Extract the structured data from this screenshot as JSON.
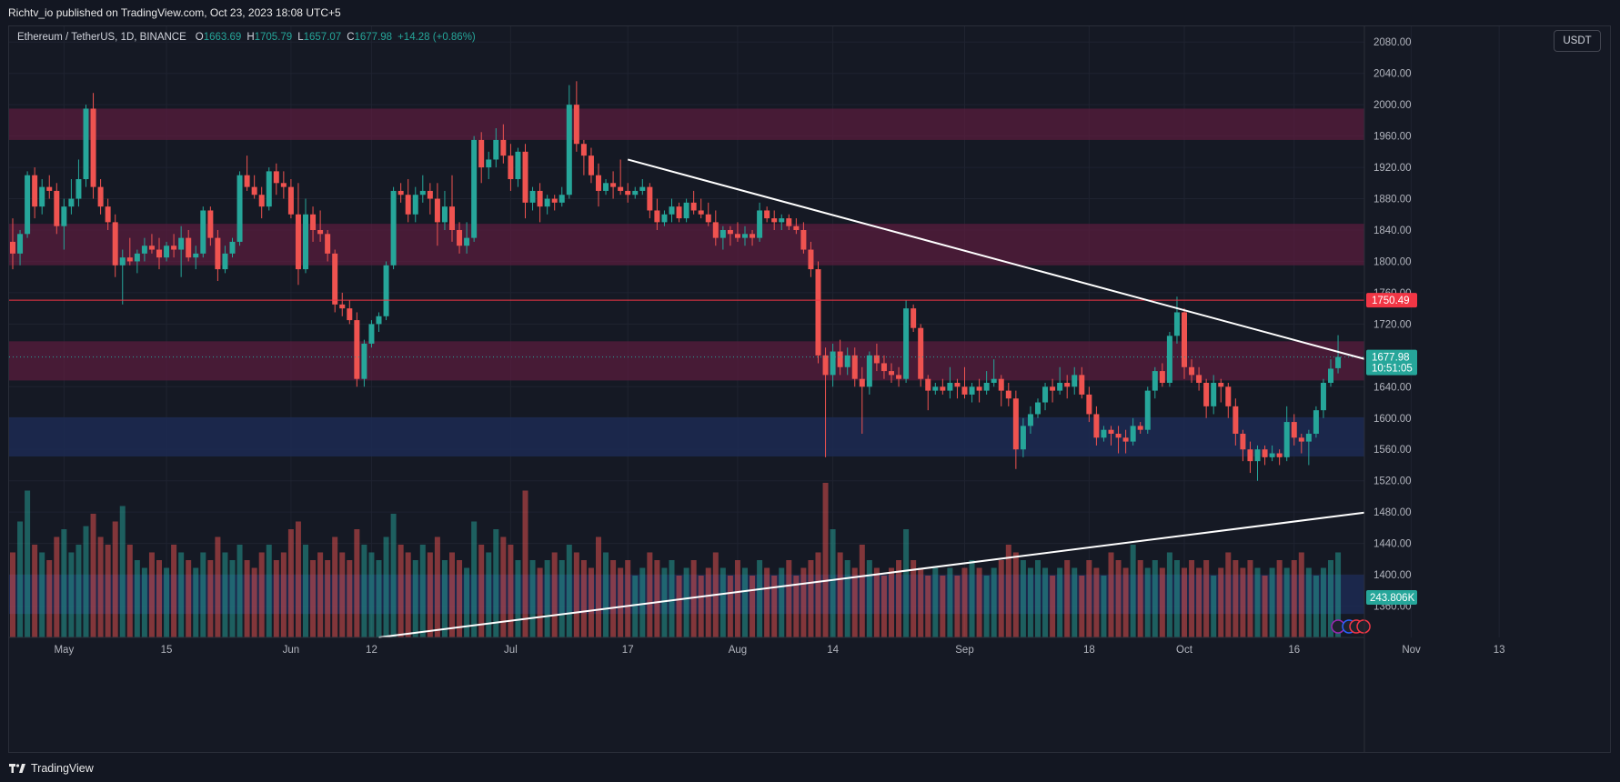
{
  "publisher_line": "Richtv_io published on TradingView.com, Oct 23, 2023 18:08 UTC+5",
  "brand": {
    "name": "TradingView",
    "icon": "tradingview-logo-icon"
  },
  "currency": "USDT",
  "legend": {
    "symbol": "Ethereum / TetherUS, 1D, BINANCE",
    "open_label": "O",
    "open": "1663.69",
    "high_label": "H",
    "high": "1705.79",
    "low_label": "L",
    "low": "1657.07",
    "close_label": "C",
    "close": "1677.98",
    "change": "+14.28 (+0.86%)"
  },
  "colors": {
    "up": "#26a69a",
    "down": "#ef5350",
    "supply_zone": "#5c1d3e",
    "demand_zone": "#1c2a52",
    "level_line": "#f23645",
    "trendline": "#ffffff"
  },
  "chart_data": {
    "type": "candlestick",
    "symbol": "ETHUSDT",
    "interval": "1D",
    "ylim": [
      1320,
      2100
    ],
    "y_ticks": [
      "2080.00",
      "2040.00",
      "2000.00",
      "1960.00",
      "1920.00",
      "1880.00",
      "1840.00",
      "1800.00",
      "1760.00",
      "1720.00",
      "1680.00",
      "1640.00",
      "1600.00",
      "1560.00",
      "1520.00",
      "1480.00",
      "1440.00",
      "1400.00",
      "1360.00"
    ],
    "x_ticks": [
      "May",
      "15",
      "Jun",
      "12",
      "Jul",
      "17",
      "Aug",
      "14",
      "Sep",
      "18",
      "Oct",
      "16",
      "Nov",
      "13"
    ],
    "price_labels": [
      {
        "value": 1750.49,
        "text": "1750.49",
        "color": "#f23645"
      },
      {
        "value": 1677.98,
        "text": "1677.98",
        "sub": "10:51:05",
        "color": "#26a69a"
      }
    ],
    "volume_label": {
      "text": "243.806K",
      "color": "#26a69a"
    },
    "zones": [
      {
        "kind": "supply",
        "from": 1955,
        "to": 1995
      },
      {
        "kind": "supply",
        "from": 1795,
        "to": 1848
      },
      {
        "kind": "supply",
        "from": 1648,
        "to": 1698
      },
      {
        "kind": "demand",
        "from": 1551,
        "to": 1601
      },
      {
        "kind": "demand",
        "from": 1350,
        "to": 1400
      }
    ],
    "horizontal_level": 1750.49,
    "last_price": 1677.98,
    "trendlines": [
      {
        "from": {
          "date": "2023-07-17",
          "price": 1930
        },
        "to": {
          "date": "2023-11-09",
          "price": 1639
        }
      },
      {
        "from": {
          "date": "2023-06-13",
          "price": 1320
        },
        "to": {
          "date": "2023-11-29",
          "price": 1520
        }
      }
    ],
    "start_date": "2023-04-24",
    "candles": [
      [
        1825,
        1855,
        1790,
        1810
      ],
      [
        1810,
        1840,
        1795,
        1835
      ],
      [
        1835,
        1915,
        1830,
        1910
      ],
      [
        1910,
        1920,
        1855,
        1870
      ],
      [
        1870,
        1905,
        1860,
        1895
      ],
      [
        1895,
        1910,
        1880,
        1890
      ],
      [
        1890,
        1900,
        1835,
        1845
      ],
      [
        1845,
        1880,
        1815,
        1870
      ],
      [
        1870,
        1905,
        1860,
        1880
      ],
      [
        1880,
        1930,
        1870,
        1905
      ],
      [
        1905,
        2000,
        1895,
        1995
      ],
      [
        1995,
        2015,
        1880,
        1895
      ],
      [
        1895,
        1905,
        1860,
        1870
      ],
      [
        1870,
        1880,
        1840,
        1850
      ],
      [
        1850,
        1860,
        1780,
        1795
      ],
      [
        1795,
        1815,
        1745,
        1805
      ],
      [
        1805,
        1830,
        1795,
        1800
      ],
      [
        1800,
        1815,
        1785,
        1810
      ],
      [
        1810,
        1830,
        1800,
        1820
      ],
      [
        1820,
        1835,
        1810,
        1815
      ],
      [
        1815,
        1830,
        1790,
        1805
      ],
      [
        1805,
        1825,
        1800,
        1820
      ],
      [
        1820,
        1835,
        1805,
        1815
      ],
      [
        1815,
        1845,
        1780,
        1830
      ],
      [
        1830,
        1840,
        1800,
        1805
      ],
      [
        1805,
        1820,
        1790,
        1810
      ],
      [
        1810,
        1870,
        1805,
        1865
      ],
      [
        1865,
        1870,
        1820,
        1830
      ],
      [
        1830,
        1840,
        1775,
        1790
      ],
      [
        1790,
        1820,
        1785,
        1810
      ],
      [
        1810,
        1830,
        1805,
        1825
      ],
      [
        1825,
        1915,
        1820,
        1910
      ],
      [
        1910,
        1935,
        1890,
        1895
      ],
      [
        1895,
        1910,
        1880,
        1885
      ],
      [
        1885,
        1895,
        1855,
        1870
      ],
      [
        1870,
        1920,
        1865,
        1915
      ],
      [
        1915,
        1925,
        1885,
        1900
      ],
      [
        1900,
        1915,
        1880,
        1895
      ],
      [
        1895,
        1905,
        1855,
        1860
      ],
      [
        1860,
        1900,
        1770,
        1790
      ],
      [
        1790,
        1880,
        1785,
        1860
      ],
      [
        1860,
        1870,
        1825,
        1840
      ],
      [
        1840,
        1865,
        1825,
        1835
      ],
      [
        1835,
        1840,
        1800,
        1810
      ],
      [
        1810,
        1815,
        1735,
        1745
      ],
      [
        1745,
        1760,
        1730,
        1740
      ],
      [
        1740,
        1750,
        1720,
        1725
      ],
      [
        1725,
        1735,
        1640,
        1650
      ],
      [
        1650,
        1700,
        1640,
        1695
      ],
      [
        1695,
        1725,
        1690,
        1720
      ],
      [
        1720,
        1735,
        1710,
        1730
      ],
      [
        1730,
        1800,
        1725,
        1795
      ],
      [
        1795,
        1895,
        1790,
        1890
      ],
      [
        1890,
        1900,
        1875,
        1885
      ],
      [
        1885,
        1905,
        1850,
        1860
      ],
      [
        1860,
        1895,
        1850,
        1885
      ],
      [
        1885,
        1910,
        1875,
        1890
      ],
      [
        1890,
        1900,
        1860,
        1880
      ],
      [
        1880,
        1900,
        1820,
        1850
      ],
      [
        1850,
        1890,
        1840,
        1870
      ],
      [
        1870,
        1910,
        1825,
        1840
      ],
      [
        1840,
        1850,
        1810,
        1820
      ],
      [
        1820,
        1850,
        1810,
        1830
      ],
      [
        1830,
        1960,
        1825,
        1955
      ],
      [
        1955,
        1965,
        1900,
        1920
      ],
      [
        1920,
        1940,
        1905,
        1930
      ],
      [
        1930,
        1970,
        1920,
        1955
      ],
      [
        1955,
        1975,
        1925,
        1935
      ],
      [
        1935,
        1950,
        1890,
        1905
      ],
      [
        1905,
        1945,
        1895,
        1940
      ],
      [
        1940,
        1950,
        1855,
        1875
      ],
      [
        1875,
        1895,
        1865,
        1890
      ],
      [
        1890,
        1900,
        1850,
        1870
      ],
      [
        1870,
        1885,
        1860,
        1880
      ],
      [
        1880,
        1885,
        1865,
        1875
      ],
      [
        1875,
        1895,
        1870,
        1885
      ],
      [
        1885,
        2025,
        1880,
        2000
      ],
      [
        2000,
        2030,
        1940,
        1950
      ],
      [
        1950,
        1955,
        1910,
        1935
      ],
      [
        1935,
        1945,
        1900,
        1910
      ],
      [
        1910,
        1925,
        1870,
        1890
      ],
      [
        1890,
        1905,
        1885,
        1900
      ],
      [
        1900,
        1915,
        1880,
        1895
      ],
      [
        1895,
        1930,
        1885,
        1890
      ],
      [
        1890,
        1900,
        1875,
        1885
      ],
      [
        1885,
        1895,
        1880,
        1890
      ],
      [
        1890,
        1905,
        1885,
        1895
      ],
      [
        1895,
        1900,
        1855,
        1865
      ],
      [
        1865,
        1880,
        1840,
        1850
      ],
      [
        1850,
        1865,
        1845,
        1860
      ],
      [
        1860,
        1880,
        1850,
        1870
      ],
      [
        1870,
        1875,
        1850,
        1855
      ],
      [
        1855,
        1880,
        1850,
        1875
      ],
      [
        1875,
        1890,
        1860,
        1865
      ],
      [
        1865,
        1880,
        1855,
        1860
      ],
      [
        1860,
        1875,
        1845,
        1850
      ],
      [
        1850,
        1865,
        1820,
        1830
      ],
      [
        1830,
        1845,
        1815,
        1840
      ],
      [
        1840,
        1845,
        1820,
        1835
      ],
      [
        1835,
        1850,
        1825,
        1830
      ],
      [
        1830,
        1845,
        1820,
        1835
      ],
      [
        1835,
        1840,
        1820,
        1830
      ],
      [
        1830,
        1875,
        1825,
        1865
      ],
      [
        1865,
        1870,
        1850,
        1855
      ],
      [
        1855,
        1865,
        1840,
        1850
      ],
      [
        1850,
        1860,
        1840,
        1855
      ],
      [
        1855,
        1860,
        1840,
        1845
      ],
      [
        1845,
        1855,
        1835,
        1840
      ],
      [
        1840,
        1850,
        1810,
        1815
      ],
      [
        1815,
        1825,
        1780,
        1790
      ],
      [
        1790,
        1800,
        1670,
        1680
      ],
      [
        1680,
        1690,
        1550,
        1655
      ],
      [
        1655,
        1695,
        1640,
        1685
      ],
      [
        1685,
        1700,
        1655,
        1665
      ],
      [
        1665,
        1690,
        1655,
        1680
      ],
      [
        1680,
        1690,
        1640,
        1650
      ],
      [
        1650,
        1665,
        1580,
        1640
      ],
      [
        1640,
        1685,
        1630,
        1680
      ],
      [
        1680,
        1695,
        1660,
        1670
      ],
      [
        1670,
        1680,
        1650,
        1660
      ],
      [
        1660,
        1670,
        1645,
        1655
      ],
      [
        1655,
        1665,
        1640,
        1650
      ],
      [
        1650,
        1750,
        1645,
        1740
      ],
      [
        1740,
        1745,
        1710,
        1715
      ],
      [
        1715,
        1720,
        1640,
        1650
      ],
      [
        1650,
        1655,
        1610,
        1635
      ],
      [
        1635,
        1645,
        1630,
        1640
      ],
      [
        1640,
        1650,
        1630,
        1635
      ],
      [
        1635,
        1665,
        1625,
        1645
      ],
      [
        1645,
        1650,
        1625,
        1640
      ],
      [
        1640,
        1665,
        1625,
        1630
      ],
      [
        1630,
        1645,
        1620,
        1640
      ],
      [
        1640,
        1650,
        1620,
        1635
      ],
      [
        1635,
        1660,
        1630,
        1645
      ],
      [
        1645,
        1675,
        1640,
        1650
      ],
      [
        1650,
        1655,
        1615,
        1635
      ],
      [
        1635,
        1645,
        1615,
        1625
      ],
      [
        1625,
        1635,
        1535,
        1560
      ],
      [
        1560,
        1600,
        1550,
        1590
      ],
      [
        1590,
        1615,
        1580,
        1605
      ],
      [
        1605,
        1625,
        1600,
        1620
      ],
      [
        1620,
        1645,
        1610,
        1640
      ],
      [
        1640,
        1650,
        1620,
        1635
      ],
      [
        1635,
        1665,
        1630,
        1645
      ],
      [
        1645,
        1655,
        1625,
        1640
      ],
      [
        1640,
        1665,
        1630,
        1655
      ],
      [
        1655,
        1665,
        1625,
        1630
      ],
      [
        1630,
        1640,
        1595,
        1605
      ],
      [
        1605,
        1615,
        1565,
        1575
      ],
      [
        1575,
        1590,
        1570,
        1585
      ],
      [
        1585,
        1590,
        1565,
        1580
      ],
      [
        1580,
        1590,
        1555,
        1575
      ],
      [
        1575,
        1585,
        1555,
        1570
      ],
      [
        1570,
        1600,
        1565,
        1590
      ],
      [
        1590,
        1595,
        1580,
        1585
      ],
      [
        1585,
        1640,
        1580,
        1635
      ],
      [
        1635,
        1665,
        1625,
        1660
      ],
      [
        1660,
        1670,
        1640,
        1645
      ],
      [
        1645,
        1710,
        1640,
        1705
      ],
      [
        1705,
        1755,
        1695,
        1735
      ],
      [
        1735,
        1740,
        1650,
        1665
      ],
      [
        1665,
        1675,
        1645,
        1655
      ],
      [
        1655,
        1665,
        1635,
        1645
      ],
      [
        1645,
        1650,
        1600,
        1615
      ],
      [
        1615,
        1655,
        1605,
        1645
      ],
      [
        1645,
        1650,
        1620,
        1640
      ],
      [
        1640,
        1645,
        1600,
        1615
      ],
      [
        1615,
        1625,
        1565,
        1580
      ],
      [
        1580,
        1585,
        1545,
        1560
      ],
      [
        1560,
        1570,
        1530,
        1545
      ],
      [
        1545,
        1565,
        1520,
        1560
      ],
      [
        1560,
        1565,
        1540,
        1550
      ],
      [
        1550,
        1565,
        1545,
        1555
      ],
      [
        1555,
        1560,
        1540,
        1550
      ],
      [
        1550,
        1615,
        1545,
        1595
      ],
      [
        1595,
        1605,
        1565,
        1575
      ],
      [
        1575,
        1580,
        1555,
        1570
      ],
      [
        1570,
        1585,
        1540,
        1580
      ],
      [
        1580,
        1615,
        1575,
        1610
      ],
      [
        1610,
        1650,
        1600,
        1645
      ],
      [
        1645,
        1675,
        1640,
        1663
      ],
      [
        1663.69,
        1705.79,
        1657.07,
        1677.98
      ]
    ],
    "volumes": [
      0.55,
      0.75,
      0.95,
      0.6,
      0.55,
      0.5,
      0.65,
      0.7,
      0.55,
      0.6,
      0.72,
      0.8,
      0.65,
      0.6,
      0.75,
      0.85,
      0.6,
      0.5,
      0.45,
      0.55,
      0.5,
      0.45,
      0.6,
      0.55,
      0.5,
      0.45,
      0.55,
      0.5,
      0.65,
      0.55,
      0.5,
      0.6,
      0.5,
      0.45,
      0.55,
      0.6,
      0.5,
      0.55,
      0.7,
      0.75,
      0.6,
      0.5,
      0.55,
      0.5,
      0.65,
      0.55,
      0.5,
      0.7,
      0.6,
      0.55,
      0.5,
      0.65,
      0.8,
      0.6,
      0.55,
      0.5,
      0.6,
      0.55,
      0.65,
      0.5,
      0.55,
      0.5,
      0.45,
      0.75,
      0.6,
      0.55,
      0.7,
      0.65,
      0.6,
      0.5,
      0.95,
      0.5,
      0.45,
      0.5,
      0.55,
      0.5,
      0.6,
      0.55,
      0.5,
      0.45,
      0.65,
      0.55,
      0.5,
      0.45,
      0.5,
      0.4,
      0.45,
      0.55,
      0.5,
      0.45,
      0.5,
      0.4,
      0.45,
      0.5,
      0.4,
      0.45,
      0.55,
      0.45,
      0.4,
      0.5,
      0.45,
      0.4,
      0.5,
      0.45,
      0.4,
      0.45,
      0.5,
      0.4,
      0.45,
      0.5,
      0.55,
      1.0,
      0.7,
      0.55,
      0.5,
      0.45,
      0.6,
      0.5,
      0.45,
      0.4,
      0.45,
      0.5,
      0.7,
      0.5,
      0.45,
      0.4,
      0.45,
      0.4,
      0.45,
      0.4,
      0.45,
      0.5,
      0.45,
      0.4,
      0.45,
      0.5,
      0.6,
      0.55,
      0.5,
      0.45,
      0.5,
      0.45,
      0.4,
      0.45,
      0.5,
      0.45,
      0.4,
      0.5,
      0.45,
      0.4,
      0.55,
      0.5,
      0.45,
      0.6,
      0.5,
      0.45,
      0.5,
      0.45,
      0.55,
      0.5,
      0.45,
      0.5,
      0.45,
      0.5,
      0.4,
      0.45,
      0.55,
      0.5,
      0.45,
      0.5,
      0.45,
      0.4,
      0.45,
      0.5,
      0.45,
      0.5,
      0.55,
      0.45,
      0.4,
      0.45,
      0.5,
      0.55
    ]
  }
}
